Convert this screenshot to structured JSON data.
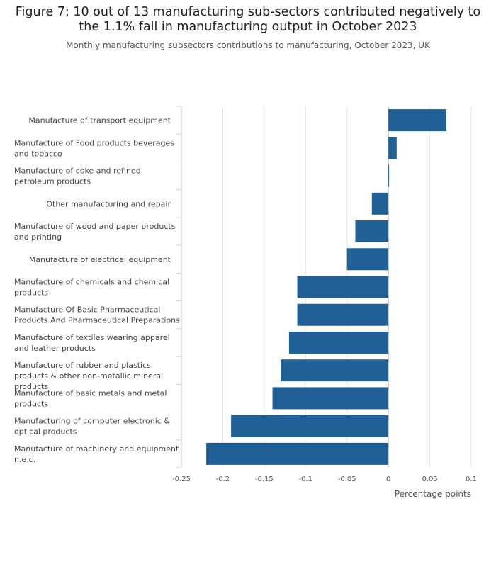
{
  "title": "Figure 7: 10 out of 13 manufacturing sub-sectors contributed negatively to the 1.1% fall in manufacturing output in October 2023",
  "subtitle": "Monthly manufacturing subsectors contributions to manufacturing, October 2023, UK",
  "chart_data": {
    "type": "bar",
    "orientation": "horizontal",
    "categories": [
      "Manufacture of transport equipment",
      "Manufacture of Food products beverages and tobacco",
      "Manufacture of coke and refined petroleum products",
      "Other manufacturing and repair",
      "Manufacture of wood and paper products and printing",
      "Manufacture of electrical equipment",
      "Manufacture of chemicals and chemical products",
      "Manufacture Of Basic Pharmaceutical Products And Pharmaceutical Preparations",
      "Manufacture of textiles wearing apparel and leather products",
      "Manufacture of rubber and plastics products & other non-metallic mineral products",
      "Manufacture of basic metals and metal products",
      "Manufacturing of computer electronic & optical products",
      "Manufacture of machinery and equipment n.e.c."
    ],
    "category_lines": [
      [
        "Manufacture of transport equipment"
      ],
      [
        "Manufacture of Food products beverages",
        "and tobacco"
      ],
      [
        "Manufacture of coke and refined",
        "petroleum products"
      ],
      [
        "Other manufacturing and repair"
      ],
      [
        "Manufacture of wood and paper products",
        "and printing"
      ],
      [
        "Manufacture of electrical equipment"
      ],
      [
        "Manufacture of chemicals and chemical",
        "products"
      ],
      [
        "Manufacture Of Basic Pharmaceutical",
        "Products And Pharmaceutical Preparations"
      ],
      [
        "Manufacture of textiles wearing apparel",
        "and leather products"
      ],
      [
        "Manufacture of rubber and plastics",
        "products & other non-metallic mineral",
        "products"
      ],
      [
        "Manufacture of basic metals and metal",
        "products"
      ],
      [
        "Manufacturing of computer electronic &",
        "optical products"
      ],
      [
        "Manufacture of machinery and equipment",
        "n.e.c."
      ]
    ],
    "values": [
      0.07,
      0.01,
      0.0005,
      -0.02,
      -0.04,
      -0.05,
      -0.11,
      -0.11,
      -0.12,
      -0.13,
      -0.14,
      -0.19,
      -0.22
    ],
    "xlabel": "Percentage points",
    "ylabel": "",
    "xlim": [
      -0.25,
      0.1
    ],
    "xticks": [
      -0.25,
      -0.2,
      -0.15,
      -0.1,
      -0.05,
      0,
      0.05,
      0.1
    ],
    "xtick_labels": [
      "-0.25",
      "-0.2",
      "-0.15",
      "-0.1",
      "-0.05",
      "0",
      "0.05",
      "0.1"
    ],
    "grid": true,
    "bar_color": "#206095",
    "grid_color": "#e6e6e6"
  }
}
